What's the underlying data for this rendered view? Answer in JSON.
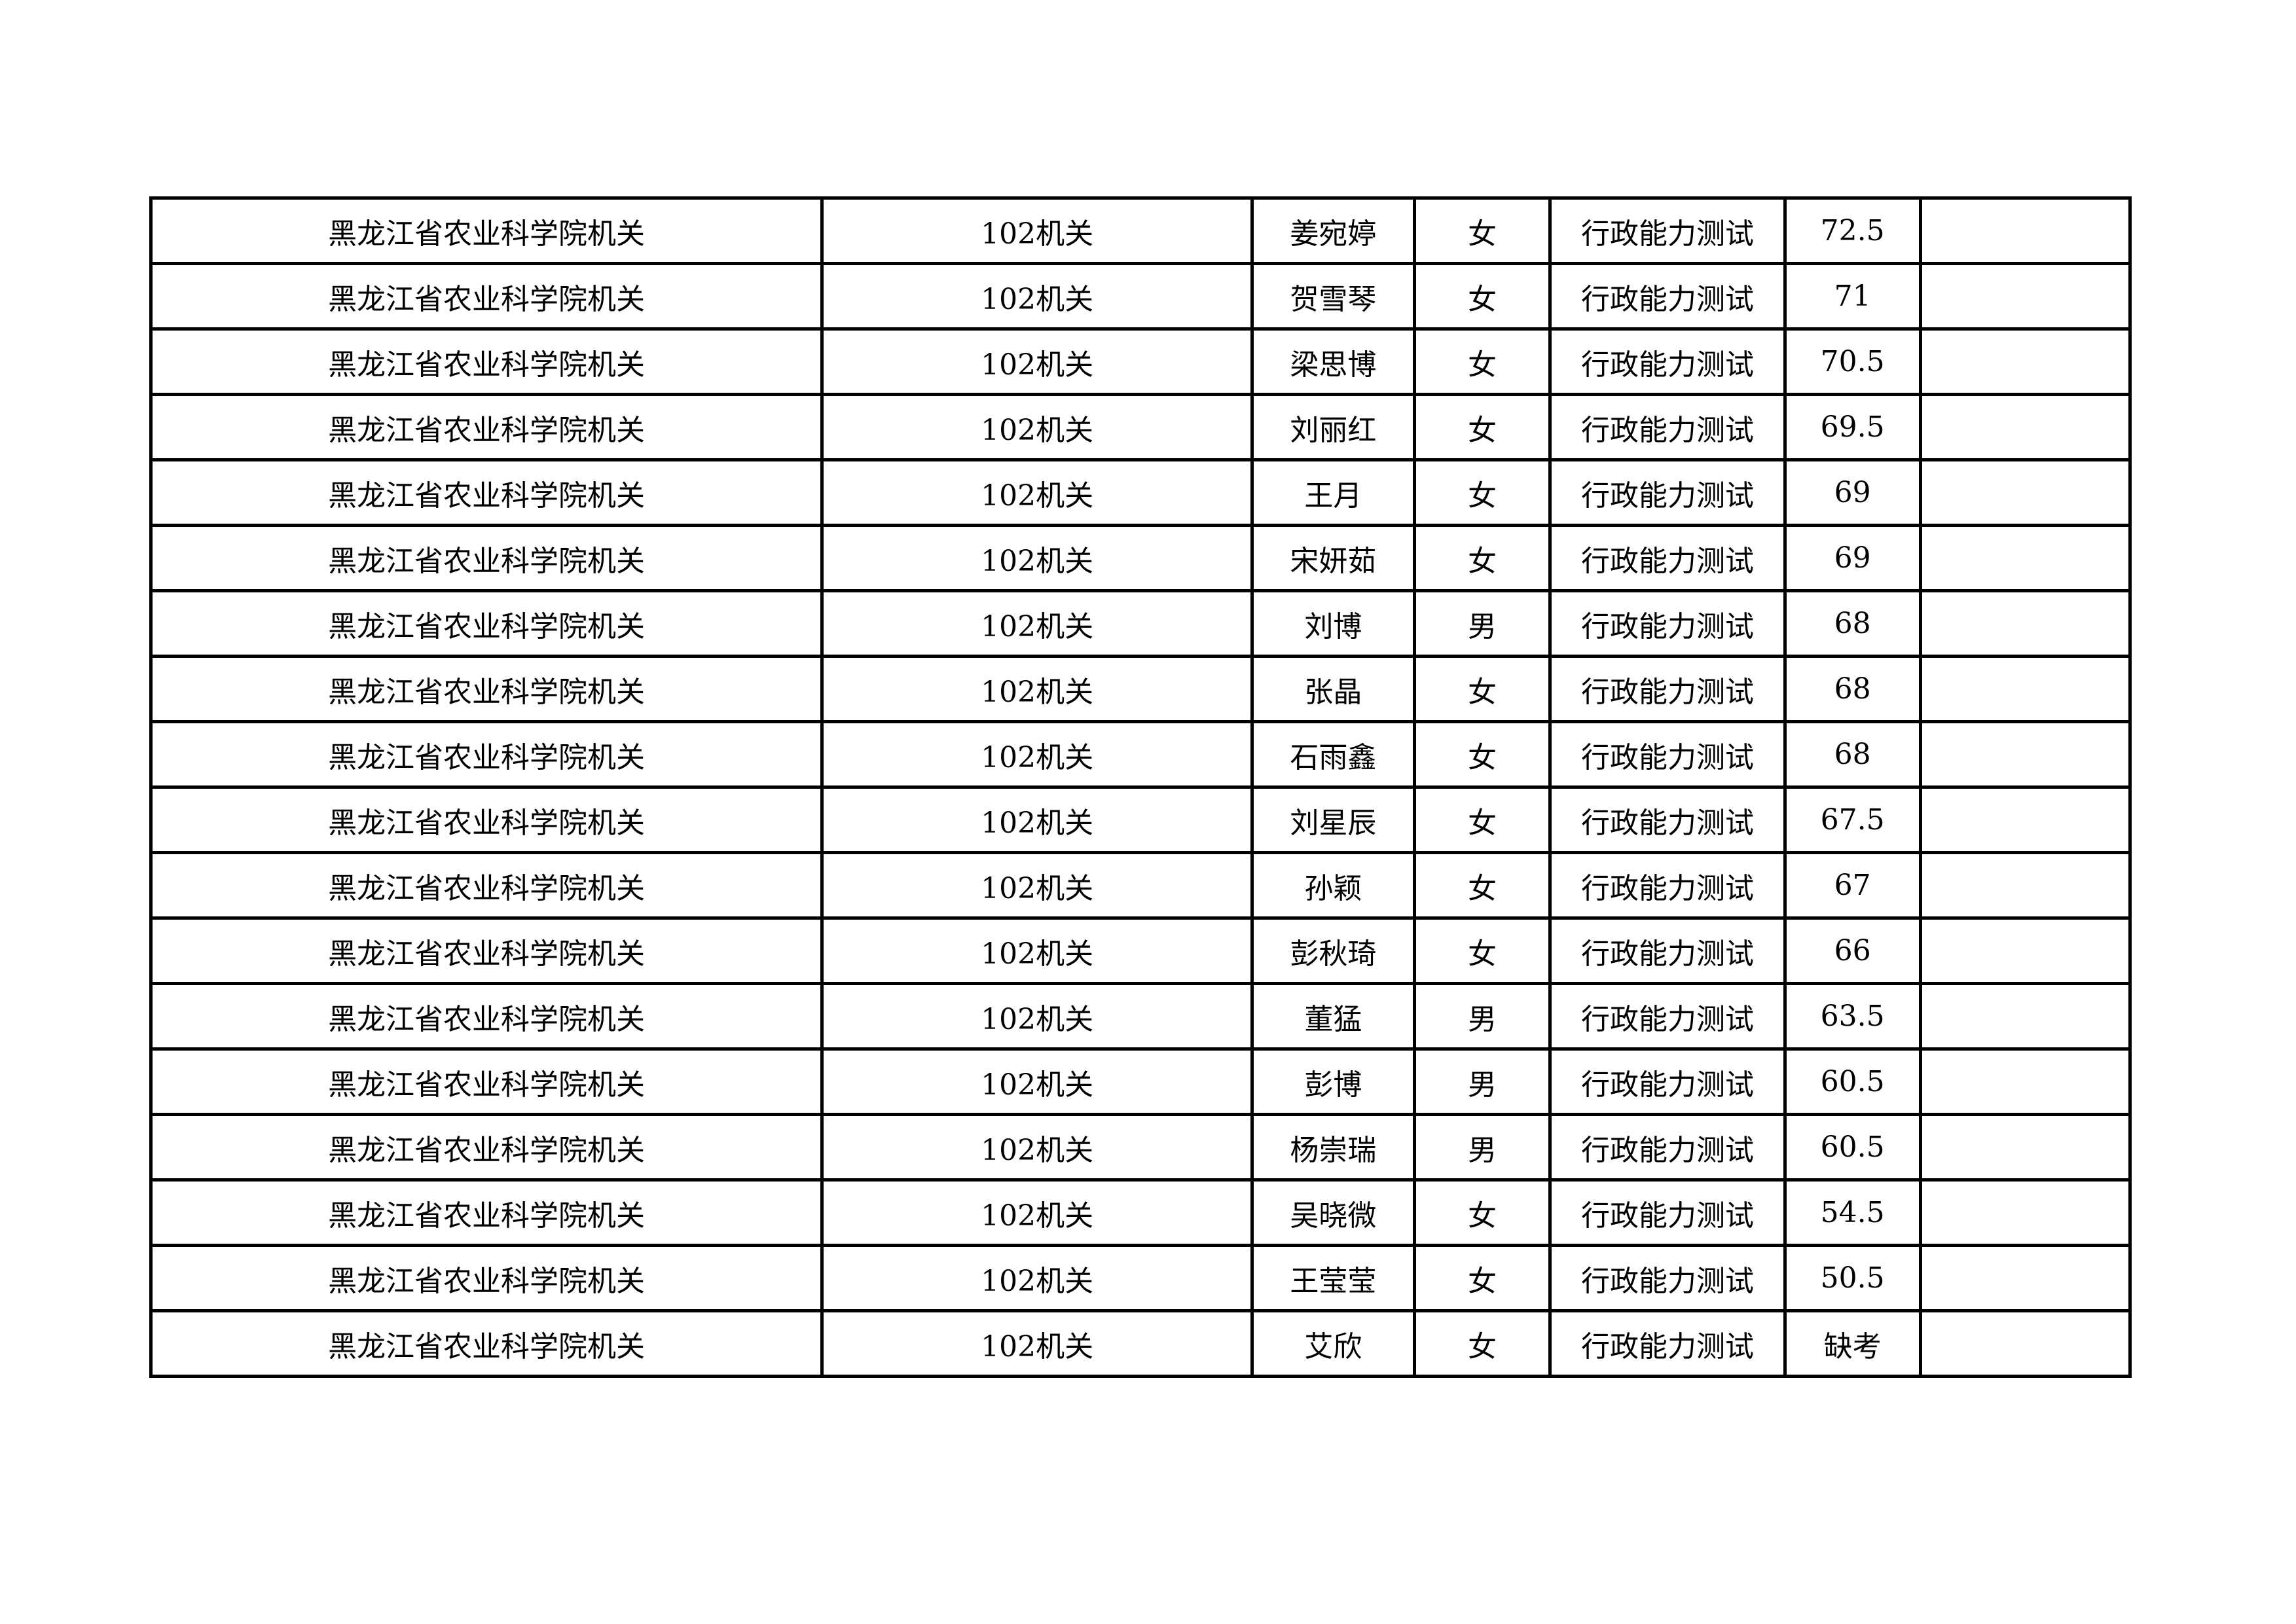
{
  "rows": [
    [
      "黑龙江省农业科学院机关",
      "102机关",
      "姜宛婷",
      "女",
      "行政能力测试",
      "72.5",
      ""
    ],
    [
      "黑龙江省农业科学院机关",
      "102机关",
      "贺雪琴",
      "女",
      "行政能力测试",
      "71",
      ""
    ],
    [
      "黑龙江省农业科学院机关",
      "102机关",
      "梁思博",
      "女",
      "行政能力测试",
      "70.5",
      ""
    ],
    [
      "黑龙江省农业科学院机关",
      "102机关",
      "刘丽红",
      "女",
      "行政能力测试",
      "69.5",
      ""
    ],
    [
      "黑龙江省农业科学院机关",
      "102机关",
      "王月",
      "女",
      "行政能力测试",
      "69",
      ""
    ],
    [
      "黑龙江省农业科学院机关",
      "102机关",
      "宋妍茹",
      "女",
      "行政能力测试",
      "69",
      ""
    ],
    [
      "黑龙江省农业科学院机关",
      "102机关",
      "刘博",
      "男",
      "行政能力测试",
      "68",
      ""
    ],
    [
      "黑龙江省农业科学院机关",
      "102机关",
      "张晶",
      "女",
      "行政能力测试",
      "68",
      ""
    ],
    [
      "黑龙江省农业科学院机关",
      "102机关",
      "石雨鑫",
      "女",
      "行政能力测试",
      "68",
      ""
    ],
    [
      "黑龙江省农业科学院机关",
      "102机关",
      "刘星辰",
      "女",
      "行政能力测试",
      "67.5",
      ""
    ],
    [
      "黑龙江省农业科学院机关",
      "102机关",
      "孙颖",
      "女",
      "行政能力测试",
      "67",
      ""
    ],
    [
      "黑龙江省农业科学院机关",
      "102机关",
      "彭秋琦",
      "女",
      "行政能力测试",
      "66",
      ""
    ],
    [
      "黑龙江省农业科学院机关",
      "102机关",
      "董猛",
      "男",
      "行政能力测试",
      "63.5",
      ""
    ],
    [
      "黑龙江省农业科学院机关",
      "102机关",
      "彭博",
      "男",
      "行政能力测试",
      "60.5",
      ""
    ],
    [
      "黑龙江省农业科学院机关",
      "102机关",
      "杨崇瑞",
      "男",
      "行政能力测试",
      "60.5",
      ""
    ],
    [
      "黑龙江省农业科学院机关",
      "102机关",
      "吴晓微",
      "女",
      "行政能力测试",
      "54.5",
      ""
    ],
    [
      "黑龙江省农业科学院机关",
      "102机关",
      "王莹莹",
      "女",
      "行政能力测试",
      "50.5",
      ""
    ],
    [
      "黑龙江省农业科学院机关",
      "102机关",
      "艾欣",
      "女",
      "行政能力测试",
      "缺考",
      ""
    ]
  ]
}
